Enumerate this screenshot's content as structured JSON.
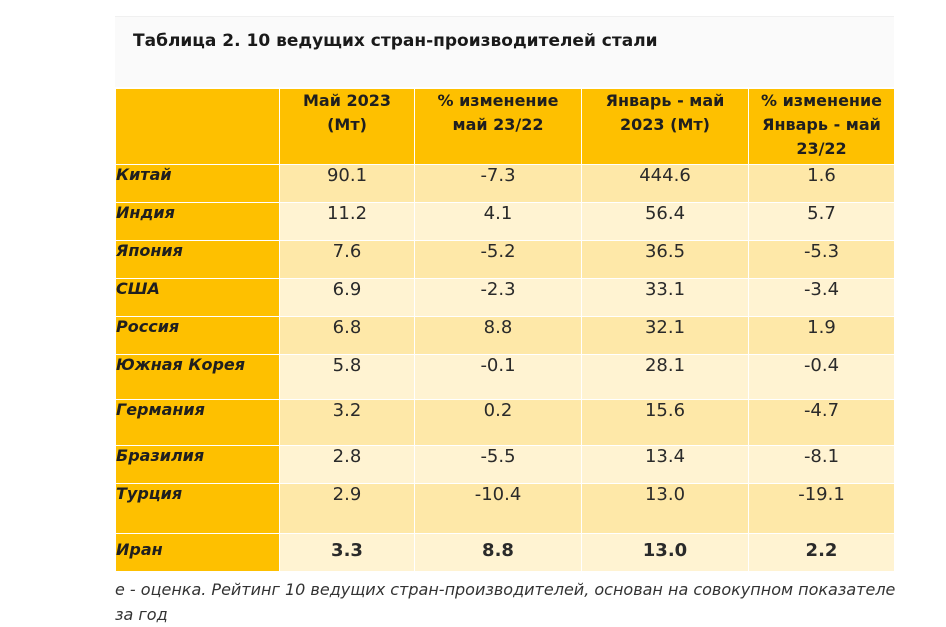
{
  "table": {
    "title": "Таблица 2. 10 ведущих стран-производителей стали",
    "headers": {
      "col1": "",
      "col2_line1": "Май 2023",
      "col2_line2": "(Мт)",
      "col3_line1": "% изменение",
      "col3_line2": "май 23/22",
      "col4_line1": "Январь - май",
      "col4_line2": "2023 (Мт)",
      "col5_line1": "% изменение",
      "col5_line2": "Январь - май",
      "col5_line3": "23/22"
    },
    "rows": [
      {
        "country": "Китай",
        "may": "90.1",
        "may_change": "-7.3",
        "jan_may": "444.6",
        "jan_may_change": "1.6"
      },
      {
        "country": "Индия",
        "may": "11.2",
        "may_change": "4.1",
        "jan_may": "56.4",
        "jan_may_change": "5.7"
      },
      {
        "country": "Япония",
        "may": "7.6",
        "may_change": "-5.2",
        "jan_may": "36.5",
        "jan_may_change": "-5.3"
      },
      {
        "country": "США",
        "may": "6.9",
        "may_change": "-2.3",
        "jan_may": "33.1",
        "jan_may_change": "-3.4"
      },
      {
        "country": "Россия",
        "may": "6.8",
        "may_change": "8.8",
        "jan_may": "32.1",
        "jan_may_change": "1.9"
      },
      {
        "country": "Южная Корея",
        "may": "5.8",
        "may_change": "-0.1",
        "jan_may": "28.1",
        "jan_may_change": "-0.4"
      },
      {
        "country": "Германия",
        "may": "3.2",
        "may_change": "0.2",
        "jan_may": "15.6",
        "jan_may_change": "-4.7"
      },
      {
        "country": "Бразилия",
        "may": "2.8",
        "may_change": "-5.5",
        "jan_may": "13.4",
        "jan_may_change": "-8.1"
      },
      {
        "country": "Турция",
        "may": "2.9",
        "may_change": "-10.4",
        "jan_may": "13.0",
        "jan_may_change": "-19.1"
      },
      {
        "country": "Иран",
        "may": "3.3",
        "may_change": "8.8",
        "jan_may": "13.0",
        "jan_may_change": "2.2"
      }
    ],
    "note": " е - оценка. Рейтинг 10 ведущих стран-производителей, основан на совокупном показателе за год"
  },
  "colors": {
    "header_yellow": "#fec000",
    "row_light_1": "#fee8a8",
    "row_light_2": "#fff3d2"
  }
}
